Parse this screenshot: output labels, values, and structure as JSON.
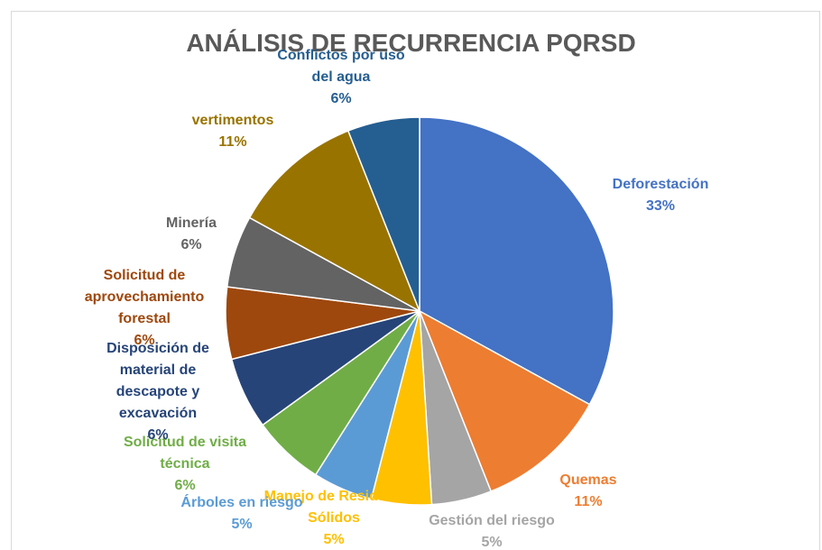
{
  "chart_data": {
    "type": "pie",
    "title": "ANÁLISIS DE RECURRENCIA PQRSD",
    "categories": [
      "Deforestación",
      "Quemas",
      "Gestión del riesgo",
      "Manejo de Residuos Sólidos",
      "Árboles en riesgo",
      "Solicitud de visita técnica",
      "Disposición de material de descapote y excavación",
      "Solicitud de aprovechamiento forestal",
      "Minería",
      "vertimentos",
      "Conflictos por uso del agua"
    ],
    "values": [
      33,
      11,
      5,
      5,
      5,
      6,
      6,
      6,
      6,
      11,
      6
    ],
    "value_labels": [
      "33%",
      "11%",
      "5%",
      "5%",
      "5%",
      "6%",
      "6%",
      "6%",
      "6%",
      "11%",
      "6%"
    ],
    "colors": [
      "#4472c4",
      "#ed7d31",
      "#a5a5a5",
      "#ffc000",
      "#5b9bd5",
      "#70ad47",
      "#264478",
      "#9e480e",
      "#636363",
      "#997300",
      "#255e91"
    ]
  }
}
